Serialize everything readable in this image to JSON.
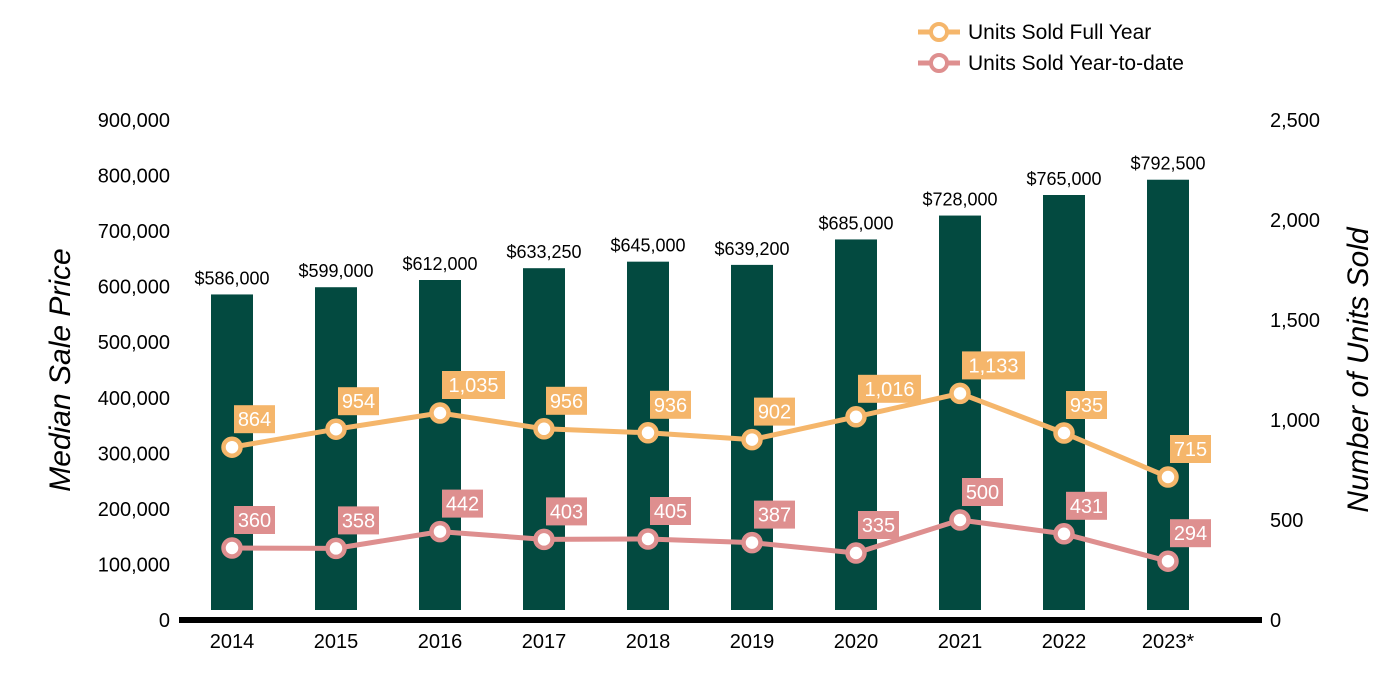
{
  "chart_data": {
    "type": "bar",
    "categories": [
      "2014",
      "2015",
      "2016",
      "2017",
      "2018",
      "2019",
      "2020",
      "2021",
      "2022",
      "2023*"
    ],
    "title": "",
    "bars": {
      "values": [
        586000,
        599000,
        612000,
        633250,
        645000,
        639200,
        685000,
        728000,
        765000,
        792500
      ],
      "labels": [
        "$586,000",
        "$599,000",
        "$612,000",
        "$633,250",
        "$645,000",
        "$639,200",
        "$685,000",
        "$728,000",
        "$765,000",
        "$792,500"
      ],
      "color": "#034a40",
      "axis": "left"
    },
    "series": [
      {
        "name": "Units Sold Full Year",
        "type": "line",
        "axis": "right",
        "color": "#f5b66b",
        "values": [
          864,
          954,
          1035,
          956,
          936,
          902,
          1016,
          1133,
          935,
          715
        ],
        "labels": [
          "864",
          "954",
          "1,035",
          "956",
          "936",
          "902",
          "1,016",
          "1,133",
          "935",
          "715"
        ]
      },
      {
        "name": "Units Sold Year-to-date",
        "type": "line",
        "axis": "right",
        "color": "#de8f8f",
        "values": [
          360,
          358,
          442,
          403,
          405,
          387,
          335,
          500,
          431,
          294
        ],
        "labels": [
          "360",
          "358",
          "442",
          "403",
          "405",
          "387",
          "335",
          "500",
          "431",
          "294"
        ]
      }
    ],
    "ylabel": "Median Sale Price",
    "y2label": "Number of Units Sold",
    "ylim": [
      0,
      900000
    ],
    "y2lim": [
      0,
      2500
    ],
    "yticks": [
      "0",
      "100,000",
      "200,000",
      "300,000",
      "400,000",
      "500,000",
      "600,000",
      "700,000",
      "800,000",
      "900,000"
    ],
    "y2ticks": [
      "0",
      "500",
      "1,000",
      "1,500",
      "2,000",
      "2,500"
    ],
    "grid": false,
    "legend_position": "top-right"
  }
}
